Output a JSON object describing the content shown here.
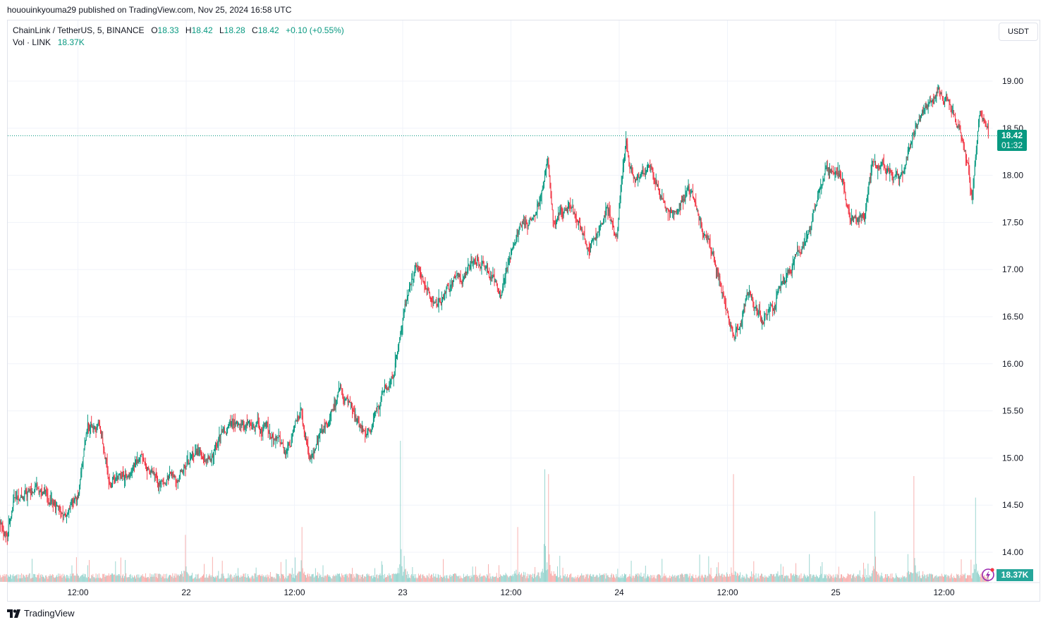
{
  "publisher_line": "hououinkyouma29 published on TradingView.com, Nov 25, 2024 16:58 UTC",
  "legend": {
    "symbol": "ChainLink / TetherUS, 5, BINANCE",
    "open_label": "O",
    "open": "18.33",
    "high_label": "H",
    "high": "18.42",
    "low_label": "L",
    "low": "18.28",
    "close_label": "C",
    "close": "18.42",
    "change": "+0.10 (+0.55%)",
    "volume_label": "Vol · LINK",
    "volume": "18.37K"
  },
  "currency_button": "USDT",
  "last_price_label": {
    "price": "18.42",
    "countdown": "01:32"
  },
  "volume_label_value": "18.37K",
  "branding": "TradingView",
  "colors": {
    "up": "#089981",
    "down": "#f23645",
    "vol_up": "#92d2cc",
    "vol_down": "#f7a9a7",
    "accent": "#089981"
  },
  "icons": {
    "alert": "lightning-bolt-icon",
    "logo": "tradingview-logo-icon"
  },
  "chart_data": {
    "type": "candlestick",
    "symbol": "LINKUSDT",
    "interval_minutes": 5,
    "ylim": [
      13.75,
      19.35
    ],
    "y_ticks": [
      "19.00",
      "18.50",
      "18.00",
      "17.50",
      "17.00",
      "16.50",
      "16.00",
      "15.50",
      "15.00",
      "14.50",
      "14.00"
    ],
    "x_ticks": [
      {
        "t": "2024-11-21T12:00",
        "label": "12:00"
      },
      {
        "t": "2024-11-22T00:00",
        "label": "22"
      },
      {
        "t": "2024-11-22T12:00",
        "label": "12:00"
      },
      {
        "t": "2024-11-23T00:00",
        "label": "23"
      },
      {
        "t": "2024-11-23T12:00",
        "label": "12:00"
      },
      {
        "t": "2024-11-24T00:00",
        "label": "24"
      },
      {
        "t": "2024-11-24T12:00",
        "label": "12:00"
      },
      {
        "t": "2024-11-25T00:00",
        "label": "25"
      },
      {
        "t": "2024-11-25T12:00",
        "label": "12:00"
      }
    ],
    "last_price": 18.42,
    "grid": true,
    "price_path": [
      [
        "2024-11-21T04:15",
        14.25
      ],
      [
        "2024-11-21T05:15",
        14.66
      ],
      [
        "2024-11-21T08:00",
        14.62
      ],
      [
        "2024-11-21T10:45",
        14.43
      ],
      [
        "2024-11-21T12:00",
        14.62
      ],
      [
        "2024-11-21T13:05",
        15.3
      ],
      [
        "2024-11-21T14:15",
        15.33
      ],
      [
        "2024-11-21T15:40",
        14.77
      ],
      [
        "2024-11-21T19:00",
        14.96
      ],
      [
        "2024-11-21T21:40",
        14.73
      ],
      [
        "2024-11-22T00:00",
        14.92
      ],
      [
        "2024-11-22T02:45",
        15.07
      ],
      [
        "2024-11-22T04:45",
        15.37
      ],
      [
        "2024-11-22T09:00",
        15.3
      ],
      [
        "2024-11-22T11:00",
        15.03
      ],
      [
        "2024-11-22T12:45",
        15.52
      ],
      [
        "2024-11-22T13:40",
        14.96
      ],
      [
        "2024-11-22T16:00",
        15.44
      ],
      [
        "2024-11-22T17:05",
        15.74
      ],
      [
        "2024-11-22T18:25",
        15.44
      ],
      [
        "2024-11-22T19:55",
        15.26
      ],
      [
        "2024-11-22T21:55",
        15.71
      ],
      [
        "2024-11-22T23:05",
        15.97
      ],
      [
        "2024-11-23T00:15",
        16.57
      ],
      [
        "2024-11-23T01:25",
        17.02
      ],
      [
        "2024-11-23T03:25",
        16.57
      ],
      [
        "2024-11-23T06:10",
        16.9
      ],
      [
        "2024-11-23T08:20",
        17.13
      ],
      [
        "2024-11-23T10:50",
        16.72
      ],
      [
        "2024-11-23T12:45",
        17.39
      ],
      [
        "2024-11-23T14:45",
        17.62
      ],
      [
        "2024-11-23T16:05",
        18.14
      ],
      [
        "2024-11-23T16:40",
        17.47
      ],
      [
        "2024-11-23T18:40",
        17.65
      ],
      [
        "2024-11-23T20:35",
        17.2
      ],
      [
        "2024-11-23T22:35",
        17.65
      ],
      [
        "2024-11-23T23:45",
        17.39
      ],
      [
        "2024-11-24T00:45",
        18.25
      ],
      [
        "2024-11-24T01:40",
        17.95
      ],
      [
        "2024-11-24T03:40",
        18.06
      ],
      [
        "2024-11-24T05:15",
        17.65
      ],
      [
        "2024-11-24T07:55",
        17.84
      ],
      [
        "2024-11-24T09:30",
        17.35
      ],
      [
        "2024-11-24T11:05",
        16.94
      ],
      [
        "2024-11-24T12:40",
        16.34
      ],
      [
        "2024-11-24T14:15",
        16.72
      ],
      [
        "2024-11-24T15:45",
        16.42
      ],
      [
        "2024-11-24T17:20",
        16.72
      ],
      [
        "2024-11-24T19:15",
        17.05
      ],
      [
        "2024-11-24T21:15",
        17.54
      ],
      [
        "2024-11-24T22:50",
        17.99
      ],
      [
        "2024-11-25T00:45",
        17.91
      ],
      [
        "2024-11-25T01:35",
        17.5
      ],
      [
        "2024-11-25T03:10",
        17.58
      ],
      [
        "2024-11-25T04:20",
        18.14
      ],
      [
        "2024-11-25T07:05",
        17.99
      ],
      [
        "2024-11-25T08:15",
        18.36
      ],
      [
        "2024-11-25T09:25",
        18.63
      ],
      [
        "2024-11-25T11:15",
        18.93
      ],
      [
        "2024-11-25T12:35",
        18.74
      ],
      [
        "2024-11-25T14:10",
        18.4
      ],
      [
        "2024-11-25T15:05",
        17.8
      ],
      [
        "2024-11-25T16:00",
        18.66
      ],
      [
        "2024-11-25T16:55",
        18.42
      ]
    ],
    "volume_spikes_k": [
      [
        "2024-11-21T23:55",
        120
      ],
      [
        "2024-11-22T12:50",
        140
      ],
      [
        "2024-11-22T23:45",
        360
      ],
      [
        "2024-11-23T12:45",
        140
      ],
      [
        "2024-11-23T15:45",
        275
      ],
      [
        "2024-11-23T16:10",
        275
      ],
      [
        "2024-11-24T12:40",
        275
      ],
      [
        "2024-11-25T04:20",
        180
      ],
      [
        "2024-11-25T08:40",
        270
      ],
      [
        "2024-11-25T15:30",
        215
      ]
    ]
  }
}
